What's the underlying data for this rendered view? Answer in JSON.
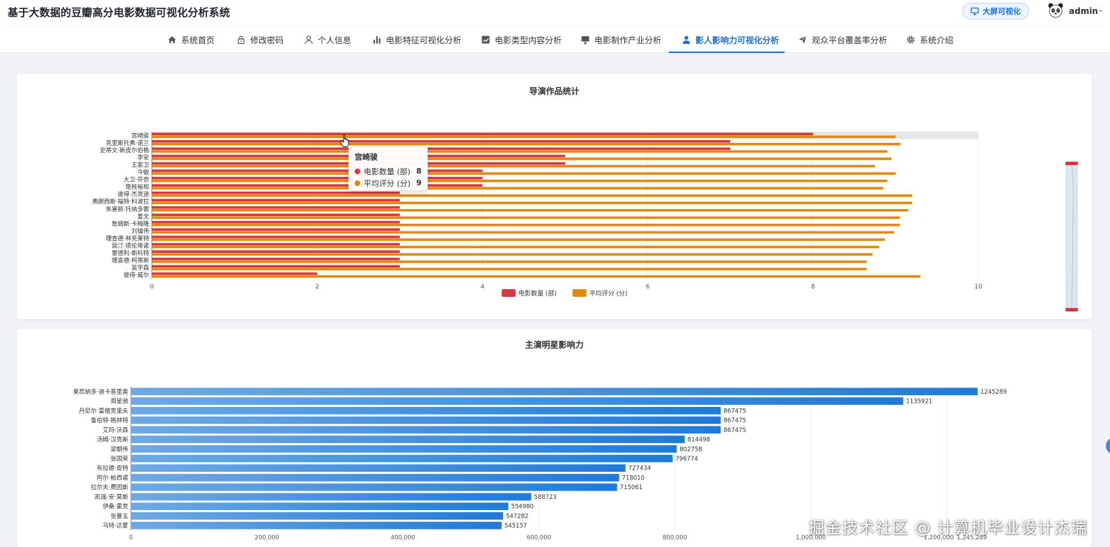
{
  "header": {
    "app_title": "基于大数据的豆瓣高分电影数据可视化分析系统",
    "bigscreen_label": "大屏可视化",
    "user_name": "admin"
  },
  "nav": {
    "items": [
      {
        "label": "系统首页",
        "icon": "home-icon"
      },
      {
        "label": "修改密码",
        "icon": "lock-icon"
      },
      {
        "label": "个人信息",
        "icon": "user-icon"
      },
      {
        "label": "电影特征可视化分析",
        "icon": "bar-chart-icon"
      },
      {
        "label": "电影类型内容分析",
        "icon": "line-chart-icon"
      },
      {
        "label": "电影制作产业分析",
        "icon": "monitor-icon"
      },
      {
        "label": "影人影响力可视化分析",
        "icon": "person-icon"
      },
      {
        "label": "观众平台覆盖率分析",
        "icon": "send-icon"
      },
      {
        "label": "系统介绍",
        "icon": "gear-icon"
      }
    ],
    "active_index": 6
  },
  "colors": {
    "accent": "#1e6fd0",
    "movie_count": "#d9363e",
    "avg_rating": "#e08a0b",
    "actor_bar": "#1f7ad8"
  },
  "tooltip": {
    "title": "宫崎骏",
    "rows": [
      {
        "label": "电影数量 (部)",
        "value": "8"
      },
      {
        "label": "平均评分 (分)",
        "value": "9"
      }
    ]
  },
  "watermark": "掘金技术社区 @ 计算机毕业设计杰瑞",
  "chart_data": [
    {
      "type": "bar",
      "orientation": "horizontal",
      "title": "导演作品统计",
      "categories": [
        "宫崎骏",
        "克里斯托弗·诺兰",
        "史蒂文·斯皮尔伯格",
        "李安",
        "王家卫",
        "今敏",
        "大卫·芬奇",
        "是枝裕和",
        "彼得·杰克逊",
        "弗朗西斯·福特·科波拉",
        "朱塞佩·托纳多雷",
        "姜文",
        "詹姆斯·卡梅隆",
        "刘镇伟",
        "理查德·林克莱特",
        "昆汀·塔伦蒂诺",
        "雷德利·斯科特",
        "理查德·柯蒂斯",
        "吴宇森",
        "彼得·威尔"
      ],
      "series": [
        {
          "name": "电影数量 (部)",
          "values": [
            8,
            7,
            7,
            5,
            5,
            4,
            4,
            4,
            3,
            3,
            3,
            3,
            3,
            3,
            3,
            3,
            3,
            3,
            3,
            2
          ]
        },
        {
          "name": "平均评分 (分)",
          "values": [
            9.0,
            9.06,
            8.9,
            8.95,
            8.75,
            9.0,
            8.9,
            8.85,
            9.2,
            9.2,
            9.15,
            9.05,
            9.05,
            8.98,
            8.87,
            8.8,
            8.72,
            8.65,
            8.65,
            9.3
          ]
        }
      ],
      "xlim": [
        0,
        10
      ],
      "xticks": [
        "0",
        "2",
        "4",
        "6",
        "8",
        "10"
      ],
      "legend_position": "bottom",
      "highlighted_category": "宫崎骏"
    },
    {
      "type": "bar",
      "orientation": "horizontal",
      "title": "主演明星影响力",
      "categories": [
        "莱昂纳多·迪卡普里奥",
        "周星驰",
        "丹尼尔·雷德克里夫",
        "鲁伯特·格林特",
        "艾玛·沃森",
        "汤姆·汉克斯",
        "梁朝伟",
        "张国荣",
        "布拉德·皮特",
        "阿尔·帕西诺",
        "拉尔夫·费因斯",
        "凯瑞-安·莫斯",
        "伊桑·霍克",
        "张曼玉",
        "马特·达蒙"
      ],
      "values": [
        1245289,
        1135921,
        867475,
        867475,
        867475,
        814498,
        802758,
        796774,
        727434,
        718010,
        715061,
        588723,
        554980,
        547282,
        545157
      ],
      "xlim": [
        0,
        1245289
      ],
      "xticks": [
        "0",
        "200,000",
        "400,000",
        "600,000",
        "800,000",
        "1,000,000",
        "1,200,000",
        "1,245,289"
      ]
    }
  ]
}
